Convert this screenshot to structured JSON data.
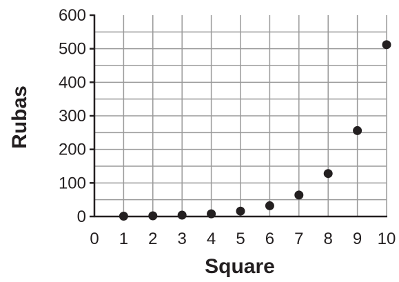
{
  "chart_data": {
    "type": "scatter",
    "xlabel": "Square",
    "ylabel": "Rubas",
    "xlim": [
      0,
      10
    ],
    "ylim": [
      0,
      600
    ],
    "x_ticks": [
      0,
      1,
      2,
      3,
      4,
      5,
      6,
      7,
      8,
      9,
      10
    ],
    "y_ticks": [
      0,
      100,
      200,
      300,
      400,
      500,
      600
    ],
    "grid": true,
    "point_color": "#231f20",
    "series": [
      {
        "x": [
          1,
          2,
          3,
          4,
          5,
          6,
          7,
          8,
          9,
          10
        ],
        "y": [
          1,
          2,
          4,
          8,
          16,
          32,
          64,
          128,
          256,
          512
        ]
      }
    ]
  }
}
